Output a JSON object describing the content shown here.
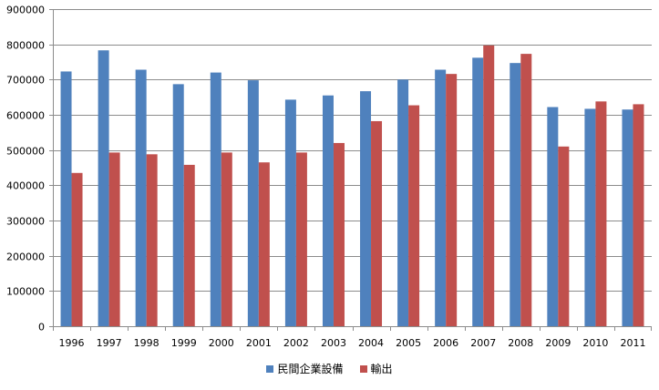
{
  "chart_data": {
    "type": "bar",
    "categories": [
      "1996",
      "1997",
      "1998",
      "1999",
      "2000",
      "2001",
      "2002",
      "2003",
      "2004",
      "2005",
      "2006",
      "2007",
      "2008",
      "2009",
      "2010",
      "2011"
    ],
    "series": [
      {
        "name": "民間企業設備",
        "color": "#4F81BD",
        "values": [
          723000,
          783000,
          728000,
          687000,
          720000,
          698000,
          643000,
          655000,
          667000,
          700000,
          728000,
          762000,
          747000,
          622000,
          617000,
          615000
        ]
      },
      {
        "name": "輸出",
        "color": "#C0504D",
        "values": [
          435000,
          493000,
          488000,
          458000,
          493000,
          465000,
          493000,
          520000,
          582000,
          627000,
          716000,
          797000,
          773000,
          510000,
          638000,
          630000
        ]
      }
    ],
    "ylim": [
      0,
      900000
    ],
    "yticks": [
      0,
      100000,
      200000,
      300000,
      400000,
      500000,
      600000,
      700000,
      800000,
      900000
    ],
    "grid": true,
    "legend_position": "bottom"
  }
}
